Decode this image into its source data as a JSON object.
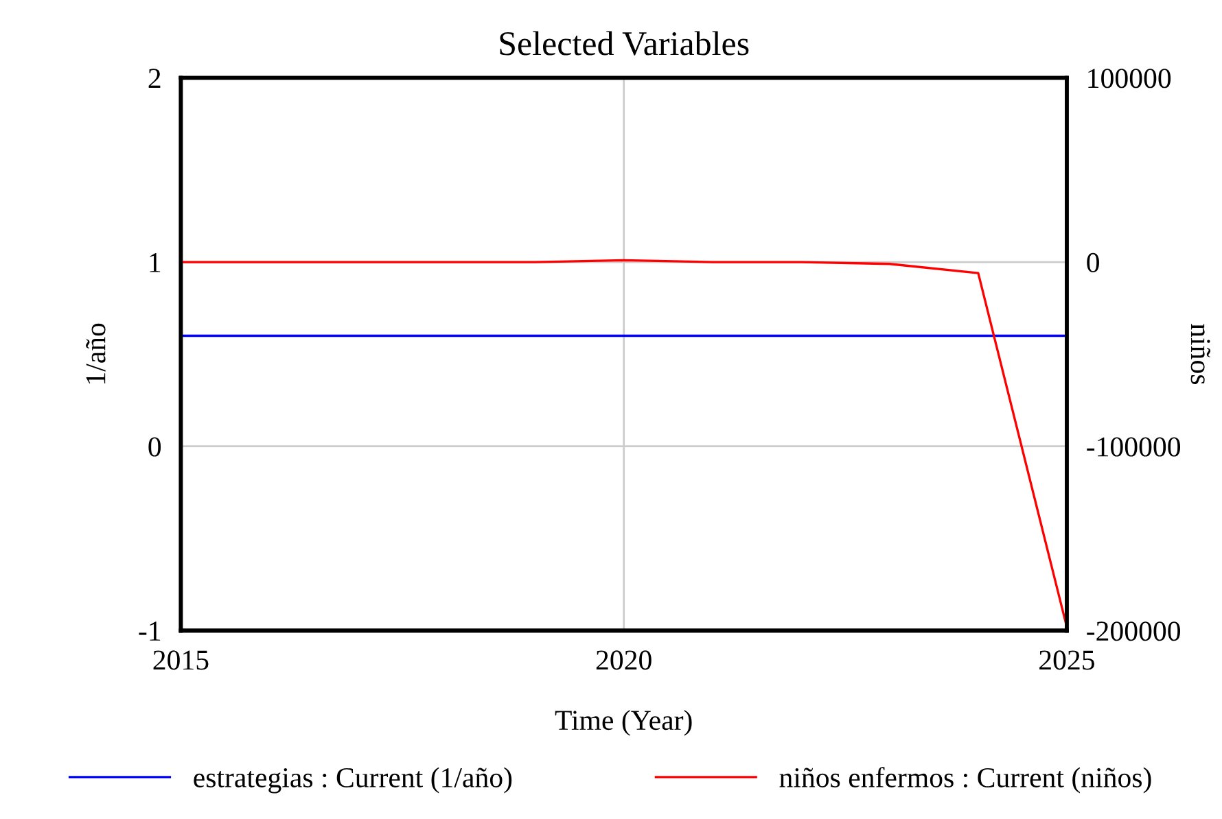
{
  "chart_data": {
    "type": "line",
    "title": "Selected Variables",
    "xlabel": "Time (Year)",
    "ylabel": "1/año",
    "y2label": "niños",
    "x": [
      2015,
      2016,
      2017,
      2018,
      2019,
      2020,
      2021,
      2022,
      2023,
      2024,
      2025
    ],
    "series": [
      {
        "name": "estrategias : Current (1/año)",
        "color": "#0000ff",
        "values": [
          0.6,
          0.6,
          0.6,
          0.6,
          0.6,
          0.6,
          0.6,
          0.6,
          0.6,
          0.6,
          0.6
        ]
      },
      {
        "name": "niños enfermos : Current (niños)",
        "color": "#ff0000",
        "axis": "y2",
        "values": [
          0,
          0,
          0,
          0,
          0,
          1000,
          0,
          0,
          -1000,
          -6000,
          -198000
        ]
      }
    ],
    "xlim": [
      2015,
      2025
    ],
    "xticks": [
      2015,
      2020,
      2025
    ],
    "ylim": [
      -1,
      2
    ],
    "yticks": [
      -1,
      0,
      1,
      2
    ],
    "y2lim": [
      -200000,
      100000
    ],
    "y2ticks": [
      -200000,
      -100000,
      0,
      100000
    ],
    "grid": true,
    "legend": "bottom"
  }
}
